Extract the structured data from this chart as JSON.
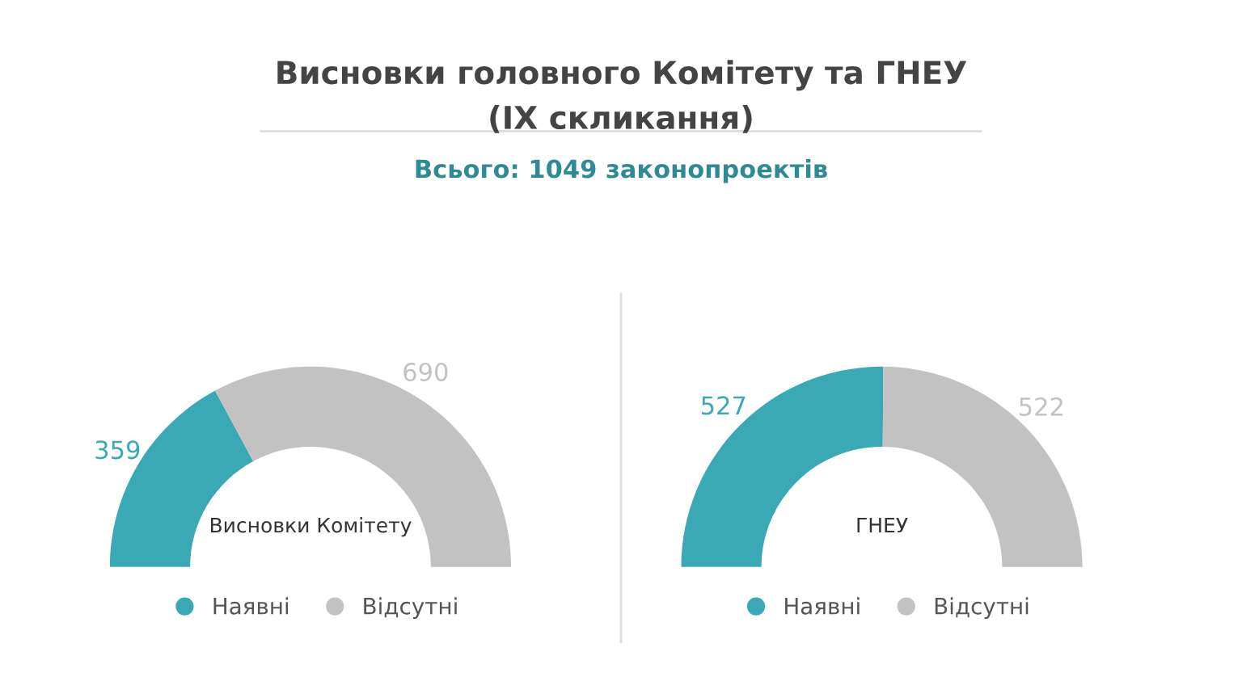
{
  "chart_data": [
    {
      "type": "donut",
      "title": "Висновки головного Комітету та ГНЕУ\n(IX скликання)",
      "subtitle": "Всього: 1049 законопроектів",
      "categories": [
        "Наявні",
        "Відсутні"
      ],
      "values": [
        359,
        690
      ],
      "colors": [
        "#3ba8b5",
        "#c2c2c2"
      ],
      "data_labels": true,
      "legend": "bottom",
      "annotations": [
        "Висновки Комітету"
      ]
    },
    {
      "type": "donut",
      "categories": [
        "Наявні",
        "Відсутні"
      ],
      "values": [
        527,
        522
      ],
      "colors": [
        "#3ba8b5",
        "#c2c2c2"
      ],
      "data_labels": true,
      "legend": "bottom",
      "annotations": [
        "ГНЕУ"
      ]
    }
  ]
}
